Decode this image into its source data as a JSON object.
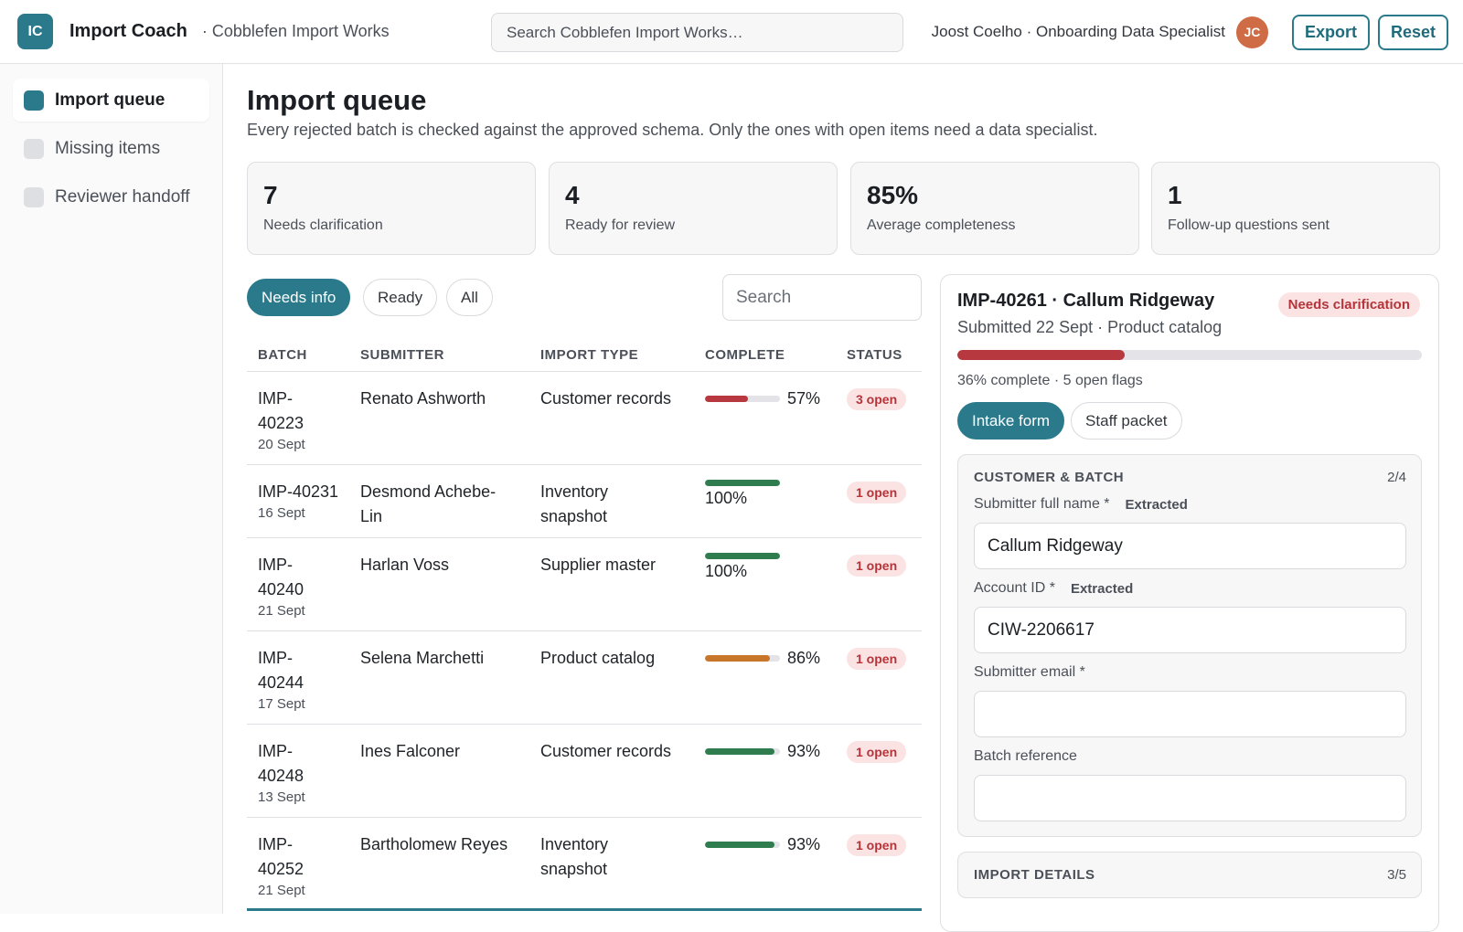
{
  "topbar": {
    "logo_initials": "IC",
    "app_name": "Import Coach",
    "org_name": "· Cobblefen Import Works",
    "search_placeholder": "Search Cobblefen Import Works…",
    "user_label": "Joost Coelho · Onboarding Data Specialist",
    "avatar_initials": "JC",
    "export_label": "Export",
    "reset_label": "Reset"
  },
  "sidebar": {
    "items": [
      {
        "label": "Import queue",
        "active": true
      },
      {
        "label": "Missing items",
        "active": false
      },
      {
        "label": "Reviewer handoff",
        "active": false
      }
    ]
  },
  "main": {
    "title": "Import queue",
    "subtitle": "Every rejected batch is checked against the approved schema. Only the ones with open items need a data specialist.",
    "stats": [
      {
        "value": "7",
        "label": "Needs clarification"
      },
      {
        "value": "4",
        "label": "Ready for review"
      },
      {
        "value": "85%",
        "label": "Average completeness"
      },
      {
        "value": "1",
        "label": "Follow-up questions sent"
      }
    ],
    "filters": [
      "Needs info",
      "Ready",
      "All"
    ],
    "search_placeholder": "Search",
    "columns": [
      "BATCH",
      "SUBMITTER",
      "IMPORT TYPE",
      "COMPLETE",
      "STATUS"
    ],
    "rows": [
      {
        "id": "IMP-40223",
        "date": "20 Sept",
        "submitter": "Renato Ashworth",
        "type": "Customer records",
        "complete": 57,
        "complete_label": "57%",
        "status": "3 open"
      },
      {
        "id": "IMP-40231",
        "date": "16 Sept",
        "submitter": "Desmond Achebe-Lin",
        "type": "Inventory snapshot",
        "complete": 100,
        "complete_label": "100%",
        "status": "1 open"
      },
      {
        "id": "IMP-40240",
        "date": "21 Sept",
        "submitter": "Harlan Voss",
        "type": "Supplier master",
        "complete": 100,
        "complete_label": "100%",
        "status": "1 open"
      },
      {
        "id": "IMP-40244",
        "date": "17 Sept",
        "submitter": "Selena Marchetti",
        "type": "Product catalog",
        "complete": 86,
        "complete_label": "86%",
        "status": "1 open"
      },
      {
        "id": "IMP-40248",
        "date": "13 Sept",
        "submitter": "Ines Falconer",
        "type": "Customer records",
        "complete": 93,
        "complete_label": "93%",
        "status": "1 open"
      },
      {
        "id": "IMP-40252",
        "date": "21 Sept",
        "submitter": "Bartholomew Reyes",
        "type": "Inventory snapshot",
        "complete": 93,
        "complete_label": "93%",
        "status": "1 open"
      }
    ]
  },
  "detail": {
    "title": "IMP-40261 · Callum Ridgeway",
    "badge": "Needs clarification",
    "subtitle": "Submitted 22 Sept · Product catalog",
    "progress": 36,
    "progress_text": "36% complete · 5 open flags",
    "tabs": [
      "Intake form",
      "Staff packet"
    ],
    "section1": {
      "title": "CUSTOMER & BATCH",
      "count": "2/4",
      "fields": [
        {
          "label": "Submitter full name *",
          "tag": "Extracted",
          "value": "Callum Ridgeway"
        },
        {
          "label": "Account ID *",
          "tag": "Extracted",
          "value": "CIW-2206617"
        },
        {
          "label": "Submitter email *",
          "tag": "",
          "value": ""
        },
        {
          "label": "Batch reference",
          "tag": "",
          "value": ""
        }
      ]
    },
    "section2": {
      "title": "IMPORT DETAILS",
      "count": "3/5"
    }
  },
  "colors": {
    "accent": "#2b7a8c",
    "bar_low": "#b7393f",
    "bar_mid": "#c8762a",
    "bar_high": "#2f7d4f"
  }
}
